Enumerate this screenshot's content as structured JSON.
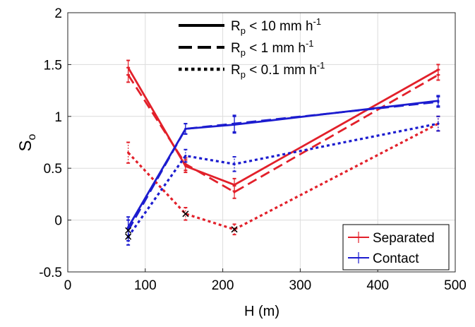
{
  "chart_data": {
    "type": "line",
    "xlabel": "H (m)",
    "ylabel": "S",
    "ylabel_sub": "o",
    "xlim": [
      0,
      500
    ],
    "ylim": [
      -0.5,
      2
    ],
    "xticks": [
      0,
      100,
      200,
      300,
      400,
      500
    ],
    "yticks": [
      -0.5,
      0,
      0.5,
      1,
      1.5,
      2
    ],
    "grid": true,
    "colors": {
      "Separated": "#e2202a",
      "Contact": "#1c1ccf"
    },
    "linestyle_legend": [
      {
        "style": "solid",
        "label_main": "R",
        "label_sub": "p",
        "label_rest": " < 10 mm h",
        "label_sup": "-1"
      },
      {
        "style": "dashed",
        "label_main": "R",
        "label_sub": "p",
        "label_rest": " < 1 mm h",
        "label_sup": "-1"
      },
      {
        "style": "dotted",
        "label_main": "R",
        "label_sub": "p",
        "label_rest": " < 0.1 mm h",
        "label_sup": "-1"
      }
    ],
    "legend": {
      "position": "bottom-right",
      "entries": [
        "Separated",
        "Contact"
      ]
    },
    "x": [
      78,
      152,
      215,
      478
    ],
    "series": [
      {
        "name": "Separated",
        "group": "Separated",
        "style": "solid",
        "values": [
          1.47,
          0.52,
          0.34,
          1.45
        ],
        "err": [
          0.07,
          0.06,
          0.06,
          0.05
        ]
      },
      {
        "name": "Separated",
        "group": "Separated",
        "style": "dashed",
        "values": [
          1.4,
          0.54,
          0.27,
          1.4
        ],
        "err": [
          0.07,
          0.06,
          0.06,
          0.05
        ]
      },
      {
        "name": "Separated",
        "group": "Separated",
        "style": "dotted",
        "values": [
          0.65,
          0.06,
          -0.09,
          0.93
        ],
        "err": [
          0.1,
          0.06,
          0.05,
          0.07
        ]
      },
      {
        "name": "Contact",
        "group": "Contact",
        "style": "solid",
        "values": [
          -0.07,
          0.88,
          0.92,
          1.15
        ],
        "err": [
          0.1,
          0.05,
          0.08,
          0.05
        ]
      },
      {
        "name": "Contact",
        "group": "Contact",
        "style": "dashed",
        "values": [
          -0.1,
          0.88,
          0.93,
          1.14
        ],
        "err": [
          0.1,
          0.05,
          0.08,
          0.05
        ]
      },
      {
        "name": "Contact",
        "group": "Contact",
        "style": "dotted",
        "values": [
          -0.16,
          0.62,
          0.54,
          0.93
        ],
        "err": [
          0.08,
          0.06,
          0.07,
          0.07
        ]
      }
    ],
    "cross_markers": [
      {
        "x": 78,
        "y": -0.1
      },
      {
        "x": 78,
        "y": -0.16
      },
      {
        "x": 152,
        "y": 0.06
      },
      {
        "x": 215,
        "y": -0.09
      }
    ]
  }
}
